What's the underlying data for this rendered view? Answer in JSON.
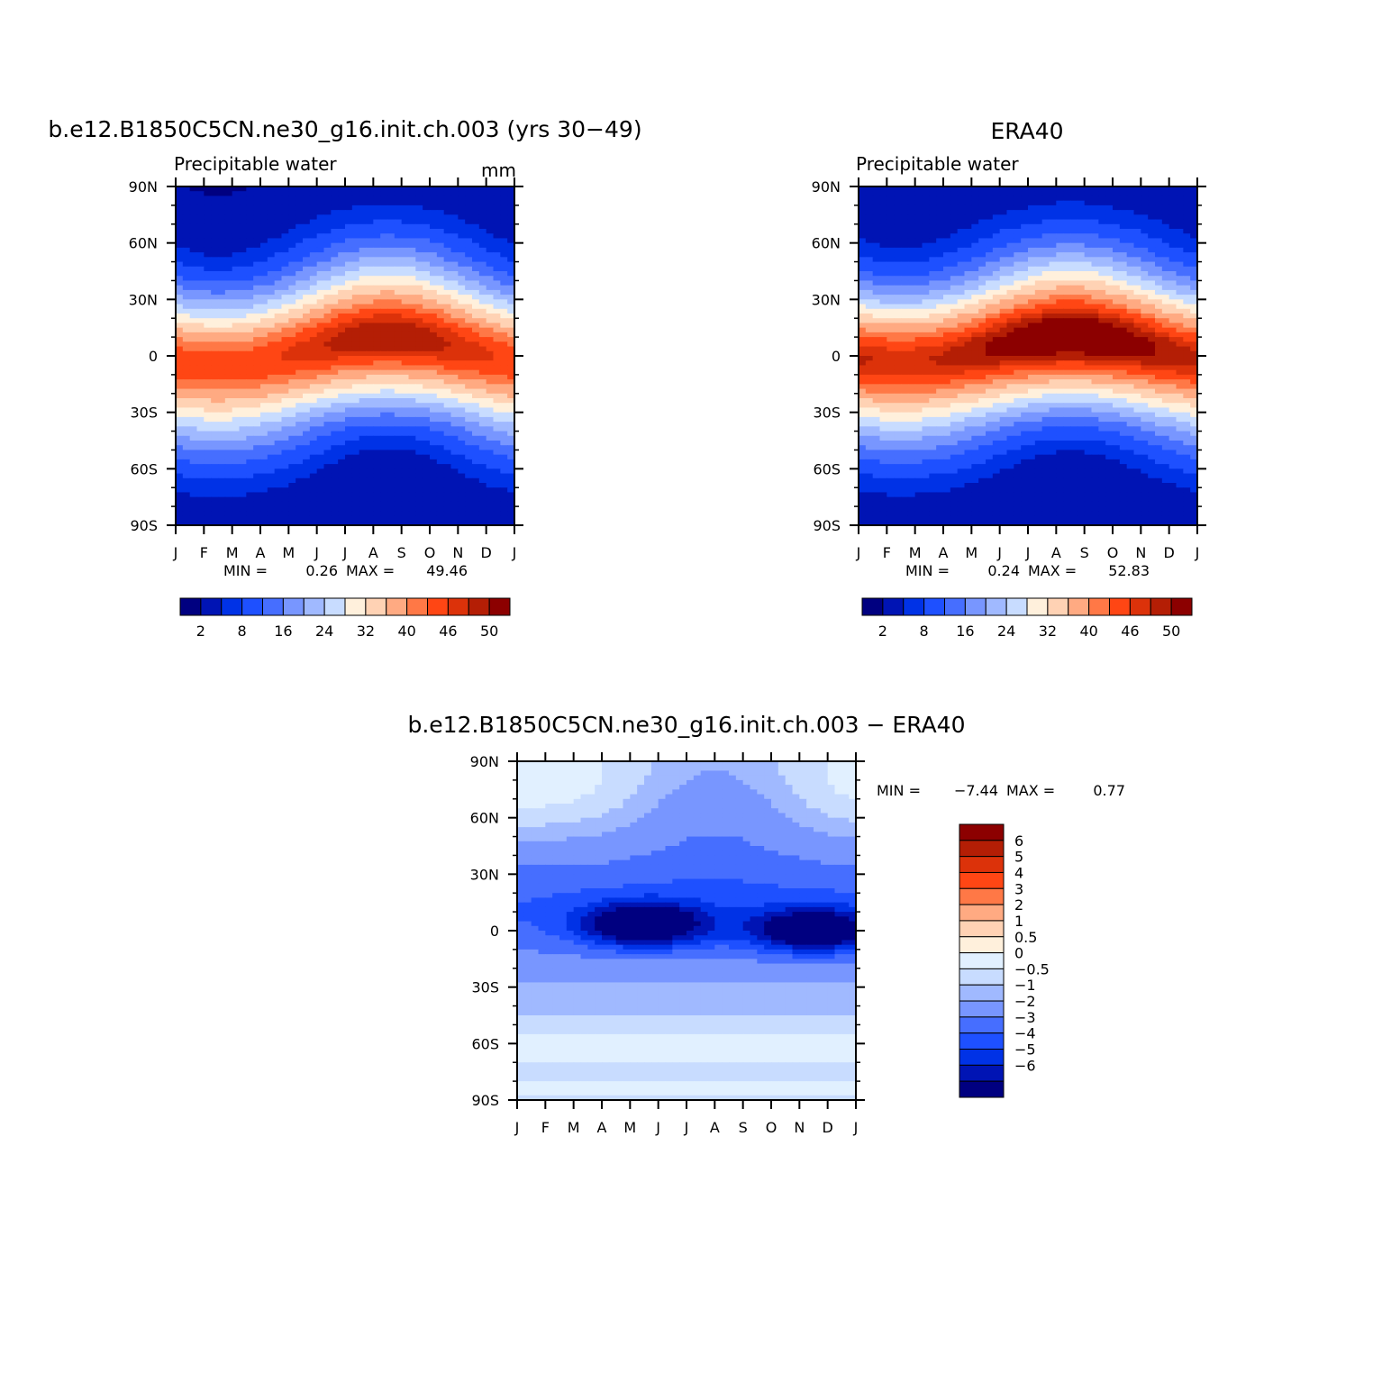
{
  "colors": {
    "seq_palette": [
      "#000080",
      "#0014b4",
      "#0032e6",
      "#1e50ff",
      "#466eff",
      "#7896ff",
      "#a0b9ff",
      "#c8dcff",
      "#fff0dc",
      "#ffd2b4",
      "#ffaa82",
      "#ff7846",
      "#ff4614",
      "#dc320a",
      "#b41e05",
      "#8c0000"
    ],
    "diff_palette": [
      "#000080",
      "#0014b4",
      "#0032e6",
      "#1e50ff",
      "#466eff",
      "#7896ff",
      "#a0b9ff",
      "#c8dcff",
      "#e1f0ff",
      "#fff0dc",
      "#ffd2b4",
      "#ffaa82",
      "#ff7846",
      "#ff4614",
      "#dc320a",
      "#b41e05",
      "#8c0000"
    ]
  },
  "chart_data": [
    {
      "type": "heatmap",
      "title": "b.e12.B1850C5CN.ne30_g16.init.ch.003 (yrs 30−49)",
      "subtitle_left": "Precipitable water",
      "subtitle_right": "mm",
      "x_ticks": [
        "J",
        "F",
        "M",
        "A",
        "M",
        "J",
        "J",
        "A",
        "S",
        "O",
        "N",
        "D",
        "J"
      ],
      "y_ticks": [
        "90N",
        "60N",
        "30N",
        "0",
        "30S",
        "60S",
        "90S"
      ],
      "ylim": [
        -90,
        90
      ],
      "stats": {
        "min_label": "MIN =",
        "min": "0.26",
        "max_label": "MAX =",
        "max": "49.46"
      },
      "colorbar": {
        "orientation": "horizontal",
        "labels": [
          "2",
          "8",
          "16",
          "24",
          "32",
          "40",
          "46",
          "50"
        ]
      },
      "peak": {
        "value": 49.46,
        "month": 7.5,
        "lat": 10
      },
      "winter_itcz_lat": -5
    },
    {
      "type": "heatmap",
      "title": "ERA40",
      "subtitle_left": "Precipitable water",
      "x_ticks": [
        "J",
        "F",
        "M",
        "A",
        "M",
        "J",
        "J",
        "A",
        "S",
        "O",
        "N",
        "D",
        "J"
      ],
      "y_ticks": [
        "90N",
        "60N",
        "30N",
        "0",
        "30S",
        "60S",
        "90S"
      ],
      "ylim": [
        -90,
        90
      ],
      "stats": {
        "min_label": "MIN =",
        "min": "0.24",
        "max_label": "MAX =",
        "max": "52.83"
      },
      "colorbar": {
        "orientation": "horizontal",
        "labels": [
          "2",
          "8",
          "16",
          "24",
          "32",
          "40",
          "46",
          "50"
        ]
      },
      "peak": {
        "value": 52.83,
        "month": 7.5,
        "lat": 10
      },
      "winter_itcz_lat": -3
    },
    {
      "type": "heatmap",
      "title": "b.e12.B1850C5CN.ne30_g16.init.ch.003 − ERA40",
      "x_ticks": [
        "J",
        "F",
        "M",
        "A",
        "M",
        "J",
        "J",
        "A",
        "S",
        "O",
        "N",
        "D",
        "J"
      ],
      "y_ticks": [
        "90N",
        "60N",
        "30N",
        "0",
        "30S",
        "60S",
        "90S"
      ],
      "ylim": [
        -90,
        90
      ],
      "stats": {
        "min_label": "MIN =",
        "min": "−7.44",
        "max_label": "MAX =",
        "max": "0.77"
      },
      "colorbar": {
        "orientation": "vertical",
        "labels": [
          "6",
          "5",
          "4",
          "3",
          "2",
          "1",
          "0.5",
          "0",
          "−0.5",
          "−1",
          "−2",
          "−3",
          "−4",
          "−5",
          "−6"
        ]
      },
      "extrema": [
        {
          "value": -7.4,
          "month": 4.5,
          "lat": 3
        },
        {
          "value": -7.0,
          "month": 10.5,
          "lat": 0
        },
        {
          "value": 0.77,
          "month": 9.8,
          "lat": 85
        }
      ]
    }
  ]
}
